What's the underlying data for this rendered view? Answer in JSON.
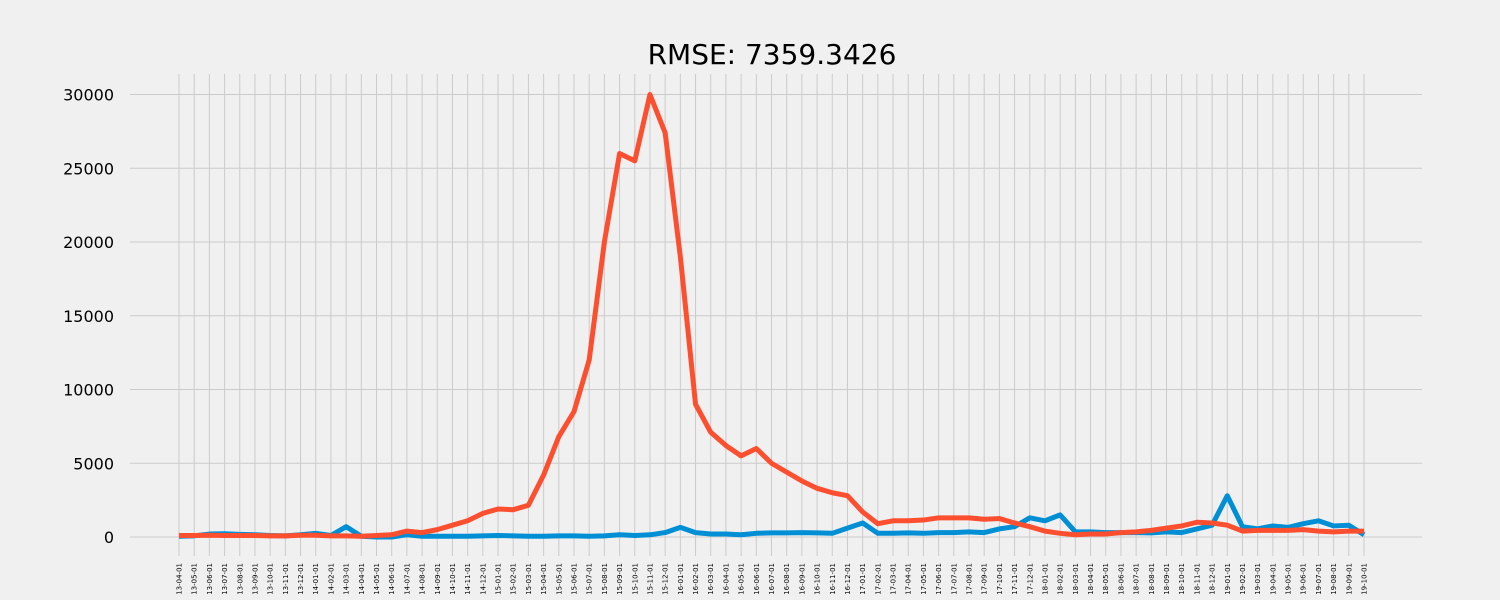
{
  "chart_data": {
    "type": "line",
    "title": "RMSE: 7359.3426",
    "xlabel": "",
    "ylabel": "",
    "ylim": [
      -1400,
      31300
    ],
    "yticks": [
      0,
      5000,
      10000,
      15000,
      20000,
      25000,
      30000
    ],
    "grid": true,
    "legend": "none",
    "x": [
      "2013-04-01",
      "2013-05-01",
      "2013-06-01",
      "2013-07-01",
      "2013-08-01",
      "2013-09-01",
      "2013-10-01",
      "2013-11-01",
      "2013-12-01",
      "2014-01-01",
      "2014-02-01",
      "2014-03-01",
      "2014-04-01",
      "2014-05-01",
      "2014-06-01",
      "2014-07-01",
      "2014-08-01",
      "2014-09-01",
      "2014-10-01",
      "2014-11-01",
      "2014-12-01",
      "2015-01-01",
      "2015-02-01",
      "2015-03-01",
      "2015-04-01",
      "2015-05-01",
      "2015-06-01",
      "2015-07-01",
      "2015-08-01",
      "2015-09-01",
      "2015-10-01",
      "2015-11-01",
      "2015-12-01",
      "2016-01-01",
      "2016-02-01",
      "2016-03-01",
      "2016-04-01",
      "2016-05-01",
      "2016-06-01",
      "2016-07-01",
      "2016-08-01",
      "2016-09-01",
      "2016-10-01",
      "2016-11-01",
      "2016-12-01",
      "2017-01-01",
      "2017-02-01",
      "2017-03-01",
      "2017-04-01",
      "2017-05-01",
      "2017-06-01",
      "2017-07-01",
      "2017-08-01",
      "2017-09-01",
      "2017-10-01",
      "2017-11-01",
      "2017-12-01",
      "2018-01-01",
      "2018-02-01",
      "2018-03-01",
      "2018-04-01",
      "2018-05-01",
      "2018-06-01",
      "2018-07-01",
      "2018-08-01",
      "2018-09-01",
      "2018-10-01",
      "2018-11-01",
      "2018-12-01",
      "2019-01-01",
      "2019-02-01",
      "2019-03-01",
      "2019-04-01",
      "2019-05-01",
      "2019-06-01",
      "2019-07-01",
      "2019-08-01",
      "2019-09-01",
      "2019-10-01"
    ],
    "x_tick_labels": [
      "13-04-01",
      "13-05-01",
      "13-06-01",
      "13-07-01",
      "13-08-01",
      "13-09-01",
      "13-10-01",
      "13-11-01",
      "13-12-01",
      "14-01-01",
      "14-02-01",
      "14-03-01",
      "14-04-01",
      "14-05-01",
      "14-06-01",
      "14-07-01",
      "14-08-01",
      "14-09-01",
      "14-10-01",
      "14-11-01",
      "14-12-01",
      "15-01-01",
      "15-02-01",
      "15-03-01",
      "15-04-01",
      "15-05-01",
      "15-06-01",
      "15-07-01",
      "15-08-01",
      "15-09-01",
      "15-10-01",
      "15-11-01",
      "15-12-01",
      "16-01-01",
      "16-02-01",
      "16-03-01",
      "16-04-01",
      "16-05-01",
      "16-06-01",
      "16-07-01",
      "16-08-01",
      "16-09-01",
      "16-10-01",
      "16-11-01",
      "16-12-01",
      "17-01-01",
      "17-02-01",
      "17-03-01",
      "17-04-01",
      "17-05-01",
      "17-06-01",
      "17-07-01",
      "17-08-01",
      "17-09-01",
      "17-10-01",
      "17-11-01",
      "17-12-01",
      "18-01-01",
      "18-02-01",
      "18-03-01",
      "18-04-01",
      "18-05-01",
      "18-06-01",
      "18-07-01",
      "18-08-01",
      "18-09-01",
      "18-10-01",
      "18-11-01",
      "18-12-01",
      "19-01-01",
      "19-02-01",
      "19-03-01",
      "19-04-01",
      "19-05-01",
      "19-06-01",
      "19-07-01",
      "19-08-01",
      "19-09-01",
      "19-10-01"
    ],
    "series": [
      {
        "color": "#008fd5",
        "values": [
          50,
          80,
          200,
          220,
          180,
          150,
          100,
          80,
          150,
          250,
          100,
          700,
          50,
          0,
          0,
          150,
          50,
          50,
          50,
          50,
          80,
          100,
          80,
          50,
          50,
          80,
          80,
          50,
          80,
          150,
          100,
          150,
          300,
          650,
          300,
          200,
          200,
          150,
          250,
          280,
          280,
          300,
          280,
          250,
          600,
          950,
          250,
          250,
          280,
          250,
          300,
          300,
          350,
          300,
          550,
          700,
          1300,
          1100,
          1500,
          350,
          350,
          300,
          300,
          300,
          280,
          350,
          300,
          550,
          800,
          2800,
          700,
          550,
          750,
          650,
          900,
          1100,
          750,
          800,
          150
        ]
      },
      {
        "color": "#fc4f30",
        "values": [
          100,
          100,
          120,
          100,
          100,
          100,
          80,
          80,
          120,
          120,
          80,
          80,
          50,
          100,
          150,
          400,
          300,
          500,
          800,
          1100,
          1600,
          1900,
          1850,
          2150,
          4200,
          6800,
          8500,
          12000,
          20000,
          26000,
          25500,
          30000,
          27400,
          19000,
          9000,
          7100,
          6200,
          5500,
          6000,
          5000,
          4400,
          3800,
          3300,
          3000,
          2800,
          1700,
          900,
          1100,
          1100,
          1150,
          1300,
          1300,
          1300,
          1200,
          1250,
          950,
          700,
          400,
          250,
          150,
          200,
          200,
          300,
          350,
          450,
          600,
          750,
          1000,
          950,
          800,
          400,
          450,
          450,
          450,
          500,
          400,
          350,
          400,
          400
        ]
      }
    ]
  }
}
